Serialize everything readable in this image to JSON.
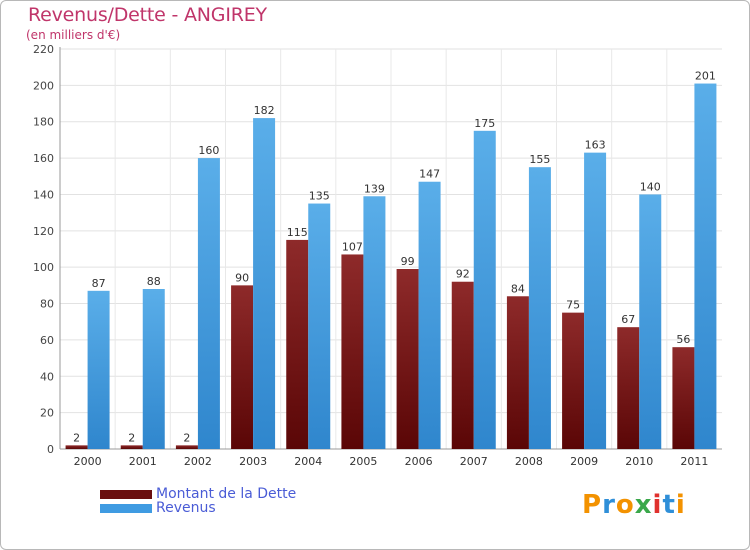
{
  "header": {
    "title": "Revenus/Dette - ANGIREY",
    "subtitle": "(en milliers d'€)"
  },
  "chart_data": {
    "type": "bar",
    "title": "Revenus/Dette - ANGIREY",
    "subtitle": "(en milliers d'€)",
    "categories": [
      "2000",
      "2001",
      "2002",
      "2003",
      "2004",
      "2005",
      "2006",
      "2007",
      "2008",
      "2009",
      "2010",
      "2011"
    ],
    "series": [
      {
        "name": "Montant de la Dette",
        "values": [
          2,
          2,
          2,
          90,
          115,
          107,
          99,
          92,
          84,
          75,
          67,
          56
        ],
        "color": "#7a1c1c"
      },
      {
        "name": "Revenus",
        "values": [
          87,
          88,
          160,
          182,
          135,
          139,
          147,
          175,
          155,
          163,
          140,
          201
        ],
        "color": "#4aa3e6"
      }
    ],
    "ylim": [
      0,
      220
    ],
    "yticks": [
      0,
      20,
      40,
      60,
      80,
      100,
      120,
      140,
      160,
      180,
      200,
      220
    ],
    "grid": true,
    "data_labels": true,
    "legend_position": "bottom-left"
  },
  "logo": {
    "text": "Proxiti",
    "letters": [
      "P",
      "r",
      "o",
      "x",
      "i",
      "t",
      "i"
    ],
    "colors": [
      "#f39200",
      "#2f8fd8",
      "#f39200",
      "#3aa84a",
      "#e0312e",
      "#2f8fd8",
      "#f39200"
    ]
  }
}
